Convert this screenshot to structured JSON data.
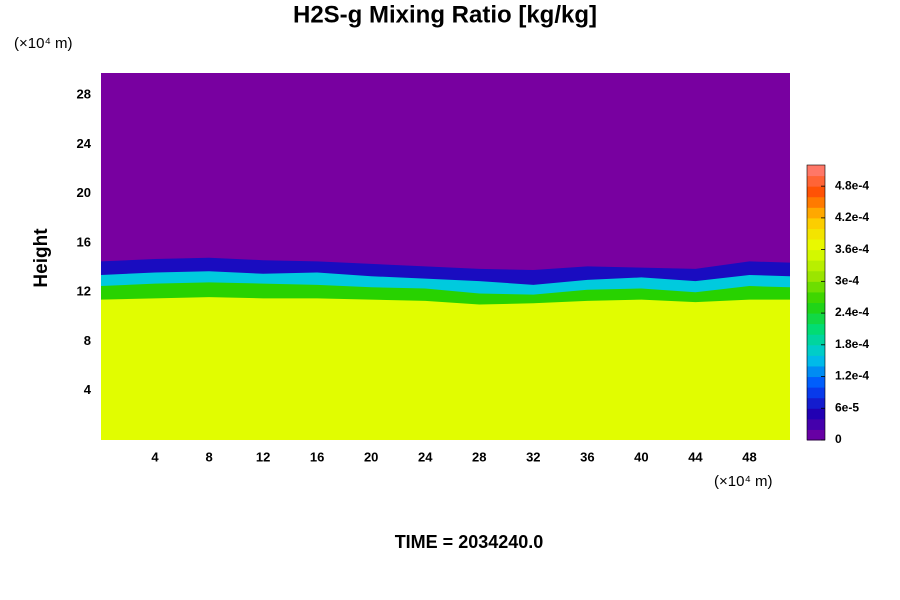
{
  "chart_data": {
    "type": "layered-contour",
    "title": "H2S-g Mixing Ratio [kg/kg]",
    "y_label": "Height",
    "x_unit": "(×10⁴ m)",
    "y_unit": "(×10⁴ m)",
    "footer": "TIME = 2034240.0",
    "xlim": [
      0,
      51
    ],
    "ylim": [
      0,
      29.8
    ],
    "xticks": [
      4,
      8,
      12,
      16,
      20,
      24,
      28,
      32,
      36,
      40,
      44,
      48
    ],
    "yticks": [
      4,
      8,
      12,
      16,
      20,
      24,
      28
    ],
    "x": [
      0,
      4,
      8,
      12,
      16,
      20,
      24,
      28,
      32,
      36,
      40,
      44,
      48,
      51
    ],
    "background_value": 0,
    "layers": [
      {
        "value": 6e-05,
        "tops": [
          14.5,
          14.7,
          14.8,
          14.6,
          14.5,
          14.3,
          14.1,
          13.9,
          13.8,
          14.1,
          14.0,
          13.9,
          14.5,
          14.4
        ]
      },
      {
        "value": 0.00016,
        "tops": [
          13.4,
          13.6,
          13.7,
          13.5,
          13.6,
          13.3,
          13.1,
          12.9,
          12.6,
          13.0,
          13.2,
          12.9,
          13.4,
          13.3
        ]
      },
      {
        "value": 0.00026,
        "tops": [
          12.5,
          12.7,
          12.8,
          12.7,
          12.6,
          12.4,
          12.3,
          11.9,
          11.8,
          12.2,
          12.3,
          12.0,
          12.5,
          12.4
        ]
      },
      {
        "value": 0.00036,
        "tops": [
          11.4,
          11.5,
          11.6,
          11.5,
          11.5,
          11.4,
          11.3,
          11.0,
          11.1,
          11.3,
          11.4,
          11.2,
          11.4,
          11.4
        ]
      }
    ],
    "clim": [
      0,
      0.00052
    ],
    "colormap": [
      "#7800a0",
      "#1e00b4",
      "#0050ff",
      "#00c8e6",
      "#00dc78",
      "#28d200",
      "#a0e600",
      "#e6ff00",
      "#ffc800",
      "#ff5000",
      "#ff8080"
    ],
    "cticks": [
      0,
      {
        "value": 6e-05,
        "label": "6e-5"
      },
      {
        "value": 0.00012,
        "label": "1.2e-4"
      },
      {
        "value": 0.00018,
        "label": "1.8e-4"
      },
      {
        "value": 0.00024,
        "label": "2.4e-4"
      },
      {
        "value": 0.0003,
        "label": "3e-4"
      },
      {
        "value": 0.00036,
        "label": "3.6e-4"
      },
      {
        "value": 0.00042,
        "label": "4.2e-4"
      },
      {
        "value": 0.00048,
        "label": "4.8e-4"
      }
    ]
  }
}
